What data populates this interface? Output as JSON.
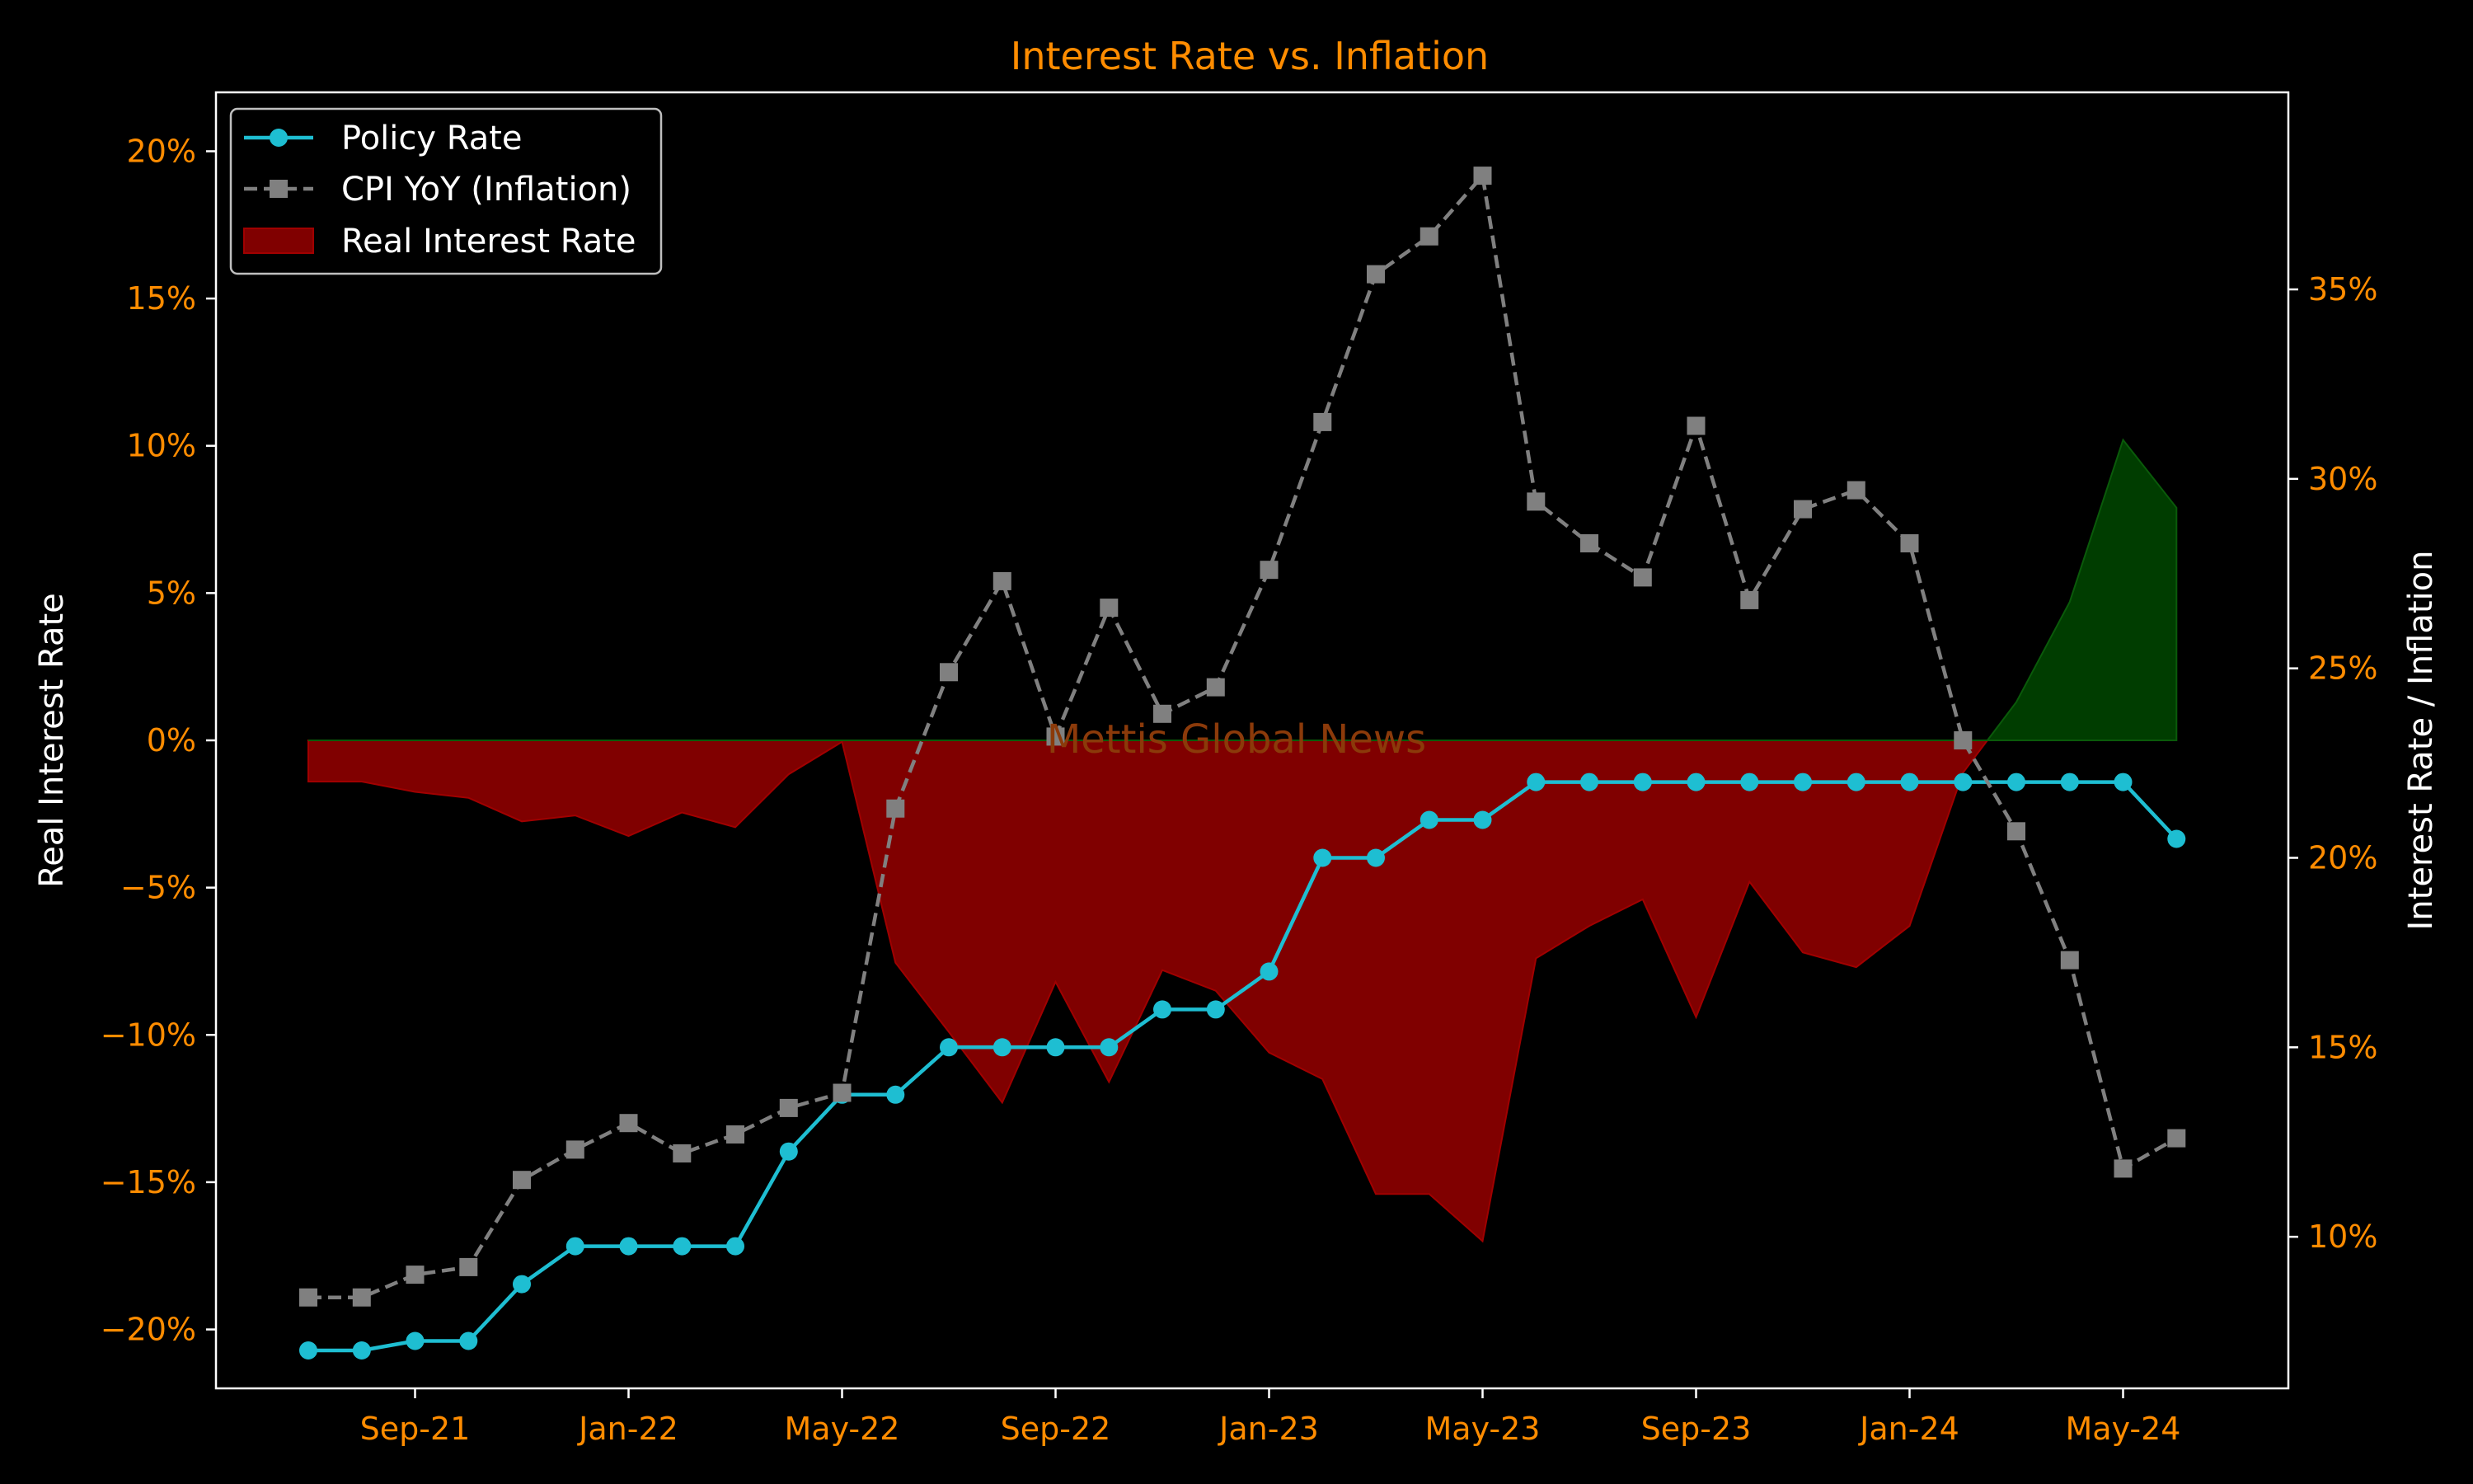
{
  "chart_data": {
    "type": "line",
    "title": "Interest Rate vs. Inflation",
    "watermark": "Mettis Global News",
    "left_axis": {
      "label": "Real Interest Rate",
      "range": [
        -22,
        22
      ],
      "ticks": [
        -20,
        -15,
        -10,
        -5,
        0,
        5,
        10,
        15,
        20
      ],
      "tick_labels": [
        "−20%",
        "−15%",
        "−10%",
        "−5%",
        "0%",
        "5%",
        "10%",
        "15%",
        "20%"
      ]
    },
    "right_axis": {
      "label": "Interest Rate / Inflation",
      "range": [
        6.0,
        40.2
      ],
      "ticks": [
        10,
        15,
        20,
        25,
        30,
        35
      ],
      "tick_labels": [
        "10%",
        "15%",
        "20%",
        "25%",
        "30%",
        "35%"
      ]
    },
    "x_axis": {
      "tick_labels": [
        "Sep-21",
        "Jan-22",
        "May-22",
        "Sep-22",
        "Jan-23",
        "May-23",
        "Sep-23",
        "Jan-24",
        "May-24"
      ],
      "tick_positions": [
        "2021-09",
        "2022-01",
        "2022-05",
        "2022-09",
        "2023-01",
        "2023-05",
        "2023-09",
        "2024-01",
        "2024-05"
      ]
    },
    "x": [
      "2021-07",
      "2021-08",
      "2021-09",
      "2021-10",
      "2021-11",
      "2021-12",
      "2022-01",
      "2022-02",
      "2022-03",
      "2022-04",
      "2022-05",
      "2022-06",
      "2022-07",
      "2022-08",
      "2022-09",
      "2022-10",
      "2022-11",
      "2022-12",
      "2023-01",
      "2023-02",
      "2023-03",
      "2023-04",
      "2023-05",
      "2023-06",
      "2023-07",
      "2023-08",
      "2023-09",
      "2023-10",
      "2023-11",
      "2023-12",
      "2024-01",
      "2024-02",
      "2024-03",
      "2024-04",
      "2024-05",
      "2024-06"
    ],
    "series": [
      {
        "name": "Policy Rate",
        "axis": "right",
        "color": "#1ebed2",
        "marker": "circle",
        "values": [
          7.0,
          7.0,
          7.25,
          7.25,
          8.75,
          9.75,
          9.75,
          9.75,
          9.75,
          12.25,
          13.75,
          13.75,
          15.0,
          15.0,
          15.0,
          15.0,
          16.0,
          16.0,
          17.0,
          20.0,
          20.0,
          21.0,
          21.0,
          22.0,
          22.0,
          22.0,
          22.0,
          22.0,
          22.0,
          22.0,
          22.0,
          22.0,
          22.0,
          22.0,
          22.0,
          20.5
        ]
      },
      {
        "name": "CPI YoY (Inflation)",
        "axis": "right",
        "color": "#808080",
        "marker": "square",
        "line_style": "dashed",
        "values": [
          8.4,
          8.4,
          9.0,
          9.2,
          11.5,
          12.3,
          13.0,
          12.2,
          12.7,
          13.4,
          13.8,
          21.3,
          24.9,
          27.3,
          23.2,
          26.6,
          23.8,
          24.5,
          27.6,
          31.5,
          35.4,
          36.4,
          38.0,
          29.4,
          28.3,
          27.4,
          31.4,
          26.8,
          29.2,
          29.7,
          28.3,
          23.1,
          20.7,
          17.3,
          11.8,
          12.6
        ]
      },
      {
        "name": "Real Interest Rate",
        "axis": "left",
        "type": "area",
        "negative_color": "#800000",
        "positive_color": "#003d00",
        "values": [
          -1.4,
          -1.4,
          -1.75,
          -1.95,
          -2.75,
          -2.55,
          -3.25,
          -2.45,
          -2.95,
          -1.15,
          -0.05,
          -7.55,
          -9.9,
          -12.3,
          -8.2,
          -11.6,
          -7.8,
          -8.5,
          -10.6,
          -11.5,
          -15.4,
          -15.4,
          -17.0,
          -7.4,
          -6.3,
          -5.4,
          -9.4,
          -4.8,
          -7.2,
          -7.7,
          -6.3,
          -1.1,
          1.3,
          4.7,
          10.2,
          7.9
        ]
      }
    ],
    "legend": {
      "placement": "upper-left",
      "entries": [
        "Policy Rate",
        "CPI YoY (Inflation)",
        "Real Interest Rate"
      ]
    }
  }
}
